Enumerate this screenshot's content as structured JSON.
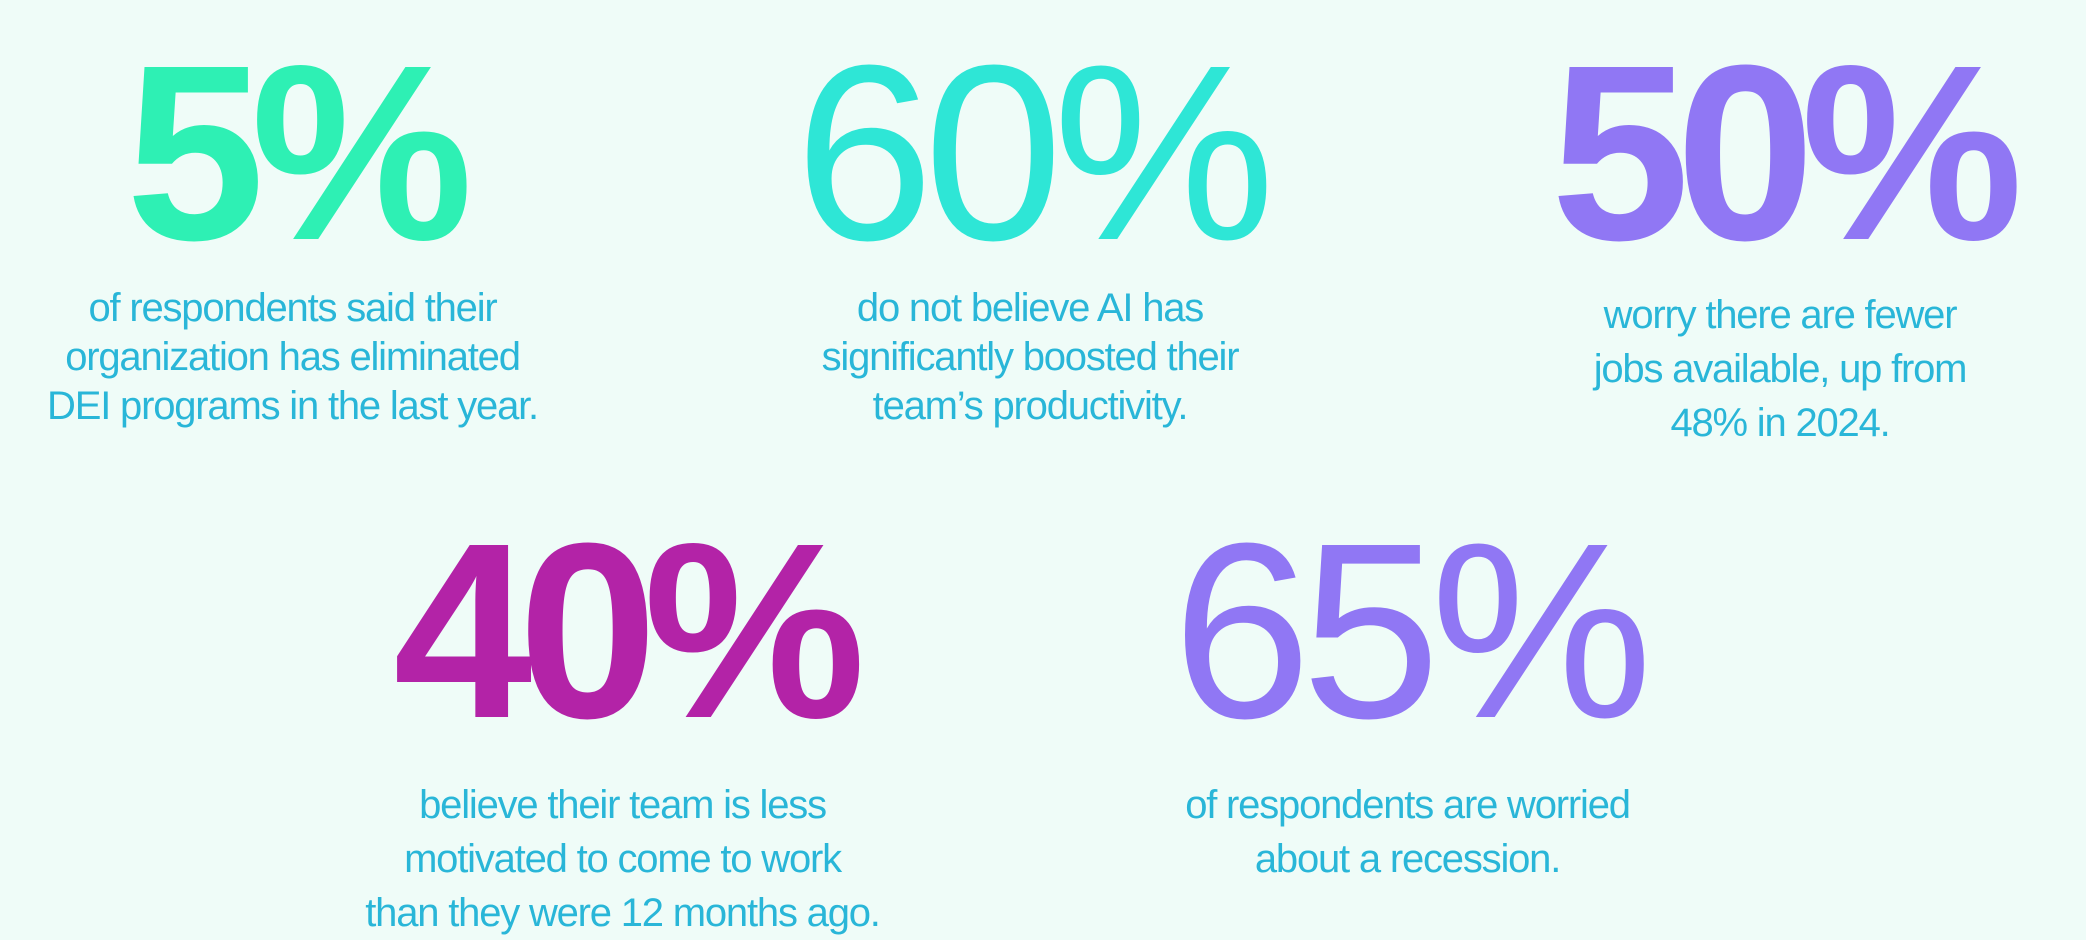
{
  "colors": {
    "background": "#effcf8",
    "text": "#29b6d8",
    "green": "#2ef0b4",
    "cyan": "#2ee6d6",
    "violet": "#9077f4",
    "magenta": "#b323a7"
  },
  "stats": [
    {
      "value": "5%",
      "lines": [
        "of respondents said their",
        "organization has eliminated",
        "DEI programs in the last year."
      ]
    },
    {
      "value": "60%",
      "lines": [
        "do not believe AI has",
        "significantly boosted their",
        "team’s productivity."
      ]
    },
    {
      "value": "50%",
      "lines": [
        "worry there are fewer",
        "jobs available, up from",
        "48% in 2024."
      ]
    },
    {
      "value": "40%",
      "lines": [
        "believe their team is less",
        "motivated to come to work",
        "than they were 12 months ago."
      ]
    },
    {
      "value": "65%",
      "lines": [
        "of respondents are worried",
        "about a recession."
      ]
    }
  ]
}
